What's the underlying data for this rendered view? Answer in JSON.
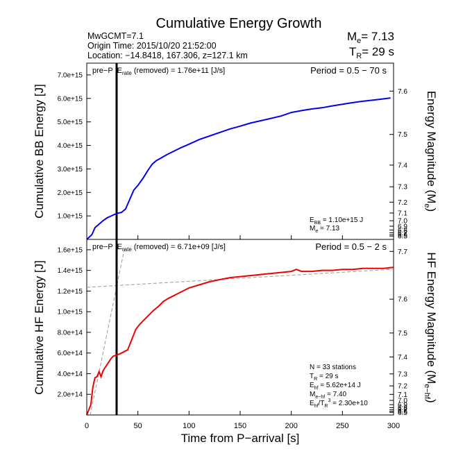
{
  "header": {
    "title": "Cumulative Energy Growth",
    "info_lines": [
      "MwGCMT=7.1",
      "Origin Time: 2015/10/20 21:52:00",
      "Location: −14.8418, 167.306, z=127.1 km"
    ],
    "me_label": "M",
    "me_sub": "e",
    "me_value": "= 7.13",
    "tr_label": "T",
    "tr_sub": "R",
    "tr_value": "= 29 s"
  },
  "x_axis": {
    "label": "Time from P−arrival [s]",
    "ticks": [
      0,
      50,
      100,
      150,
      200,
      250,
      300
    ],
    "range": [
      0,
      300
    ]
  },
  "p_marker_time": 29,
  "panel_top": {
    "left_ylabel": "Cumulative BB Energy [J]",
    "right_ylabel_main": "Energy Magnitude (M",
    "right_ylabel_sub": "e",
    "right_ylabel_close": ")",
    "pre_p_label": "pre−P",
    "erate_label": "E",
    "erate_sub": "rate",
    "erate_text": " (removed) = 1.76e+11 [J/s]",
    "period_text": "Period = 0.5 − 70 s",
    "annot": [
      {
        "main": "E",
        "sub": "BB",
        "rest": " = 1.10e+15 J"
      },
      {
        "main": "M",
        "sub": "e",
        "rest": " = 7.13"
      }
    ],
    "left_ticks": [
      "1.0e+15",
      "2.0e+15",
      "3.0e+15",
      "4.0e+15",
      "5.0e+15",
      "6.0e+15",
      "7.0e+15"
    ],
    "right_ticks": [
      "7.6",
      "7.5",
      "7.4",
      "7.3",
      "7.2",
      "7.1",
      "7.0",
      "6.9",
      "6.8",
      "6.7",
      "6.6",
      "6.5"
    ]
  },
  "panel_bottom": {
    "left_ylabel": "Cumulative HF Energy [J]",
    "right_ylabel_main": "HF Energy Magnitude (M",
    "right_ylabel_sub": "e−hf",
    "right_ylabel_close": ")",
    "pre_p_label": "pre−P",
    "erate_label": "E",
    "erate_sub": "rate",
    "erate_text": " (removed) = 6.71e+09 [J/s]",
    "period_text": "Period = 0.5 − 2 s",
    "annot": [
      {
        "main": "N = 33 stations",
        "sub": "",
        "rest": ""
      },
      {
        "main": "T",
        "sub": "R",
        "rest": " = 29  s"
      },
      {
        "main": "E",
        "sub": "hf",
        "rest": " = 5.62e+14 J"
      },
      {
        "main": "M",
        "sub": "e−hf",
        "rest": " = 7.40"
      },
      {
        "main": "E",
        "sub": "hf",
        "rest": "/T",
        "sub2": "R",
        "sup": "3",
        "rest2": " =  2.30e+10"
      }
    ],
    "left_ticks": [
      "2.0e+14",
      "4.0e+14",
      "6.0e+14",
      "8.0e+14",
      "1.0e+15",
      "1.2e+15",
      "1.4e+15",
      "1.6e+15"
    ],
    "right_ticks": [
      "7.7",
      "7.6",
      "7.5",
      "7.4",
      "7.3",
      "7.2",
      "7.1",
      "7.0",
      "6.9",
      "6.8",
      "6.7",
      "6.6",
      "6.5"
    ]
  },
  "chart_data": [
    {
      "type": "line",
      "title": "",
      "xlabel": "Time from P−arrival [s]",
      "ylabel": "Cumulative BB Energy [J]",
      "y2label": "Energy Magnitude (Me)",
      "xlim": [
        0,
        300
      ],
      "ylim": [
        0,
        7500000000000000.0
      ],
      "color": "#0000ee",
      "series": [
        {
          "x": [
            5,
            8,
            12,
            16,
            20,
            24,
            29,
            34,
            38,
            42,
            46,
            50,
            55,
            60,
            64,
            68,
            72,
            78,
            85,
            92,
            100,
            110,
            120,
            130,
            140,
            150,
            160,
            170,
            180,
            190,
            200,
            210,
            220,
            230,
            240,
            250,
            260,
            270,
            280,
            290,
            297
          ],
          "y": [
            200000000000000.0,
            500000000000000.0,
            650000000000000.0,
            800000000000000.0,
            920000000000000.0,
            1000000000000000.0,
            1100000000000000.0,
            1150000000000000.0,
            1300000000000000.0,
            1700000000000000.0,
            2100000000000000.0,
            2300000000000000.0,
            2600000000000000.0,
            2950000000000000.0,
            3200000000000000.0,
            3350000000000000.0,
            3450000000000000.0,
            3600000000000000.0,
            3750000000000000.0,
            3900000000000000.0,
            4050000000000000.0,
            4250000000000000.0,
            4400000000000000.0,
            4550000000000000.0,
            4700000000000000.0,
            4820000000000000.0,
            4950000000000000.0,
            5050000000000000.0,
            5150000000000000.0,
            5250000000000000.0,
            5400000000000000.0,
            5480000000000000.0,
            5550000000000000.0,
            5600000000000000.0,
            5680000000000000.0,
            5750000000000000.0,
            5820000000000000.0,
            5880000000000000.0,
            5930000000000000.0,
            5980000000000000.0,
            6020000000000000.0
          ]
        }
      ],
      "annotations": [
        "pre−P Erate (removed) = 1.76e+11 [J/s]",
        "Period = 0.5 − 70 s",
        "EBB = 1.10e+15 J",
        "Me = 7.13"
      ]
    },
    {
      "type": "line",
      "title": "",
      "xlabel": "Time from P−arrival [s]",
      "ylabel": "Cumulative HF Energy [J]",
      "y2label": "HF Energy Magnitude (Me−hf)",
      "xlim": [
        0,
        300
      ],
      "ylim": [
        0,
        1700000000000000.0
      ],
      "color": "#ee0000",
      "series": [
        {
          "x": [
            4,
            6,
            8,
            10,
            12,
            14,
            16,
            18,
            20,
            22,
            24,
            26,
            29,
            32,
            36,
            40,
            44,
            48,
            52,
            56,
            60,
            65,
            70,
            75,
            80,
            90,
            100,
            110,
            120,
            130,
            140,
            150,
            160,
            170,
            180,
            190,
            200,
            205,
            210,
            220,
            230,
            240,
            250,
            260,
            270,
            280,
            290,
            300
          ],
          "y": [
            100000000000000.0,
            270000000000000.0,
            360000000000000.0,
            370000000000000.0,
            420000000000000.0,
            370000000000000.0,
            430000000000000.0,
            460000000000000.0,
            490000000000000.0,
            520000000000000.0,
            550000000000000.0,
            570000000000000.0,
            580000000000000.0,
            590000000000000.0,
            610000000000000.0,
            630000000000000.0,
            730000000000000.0,
            830000000000000.0,
            880000000000000.0,
            920000000000000.0,
            960000000000000.0,
            1010000000000000.0,
            1050000000000000.0,
            1100000000000000.0,
            1130000000000000.0,
            1180000000000000.0,
            1230000000000000.0,
            1260000000000000.0,
            1290000000000000.0,
            1310000000000000.0,
            1330000000000000.0,
            1340000000000000.0,
            1350000000000000.0,
            1360000000000000.0,
            1370000000000000.0,
            1380000000000000.0,
            1390000000000000.0,
            1410000000000000.0,
            1390000000000000.0,
            1390000000000000.0,
            1400000000000000.0,
            1400000000000000.0,
            1410000000000000.0,
            1410000000000000.0,
            1420000000000000.0,
            1420000000000000.0,
            1420000000000000.0,
            1430000000000000.0
          ]
        }
      ],
      "annotations": [
        "pre−P Erate (removed) = 6.71e+09 [J/s]",
        "Period = 0.5 − 2 s",
        "N = 33 stations",
        "TR = 29  s",
        "Ehf = 5.62e+14 J",
        "Me−hf = 7.40",
        "Ehf/TR3 =  2.30e+10"
      ]
    }
  ]
}
